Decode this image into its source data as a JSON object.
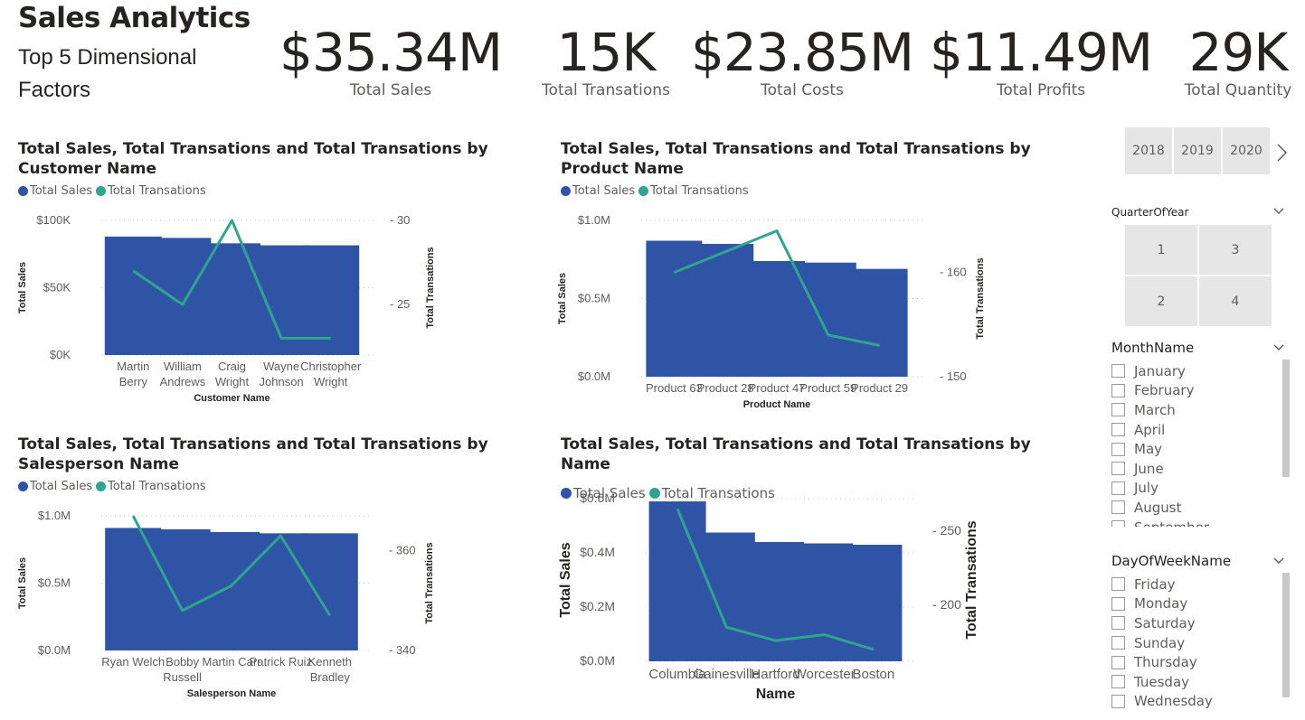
{
  "header": {
    "title": "Sales Analytics",
    "subtitle": "Top 5 Dimensional Factors"
  },
  "kpis": [
    {
      "value": "$35.34M",
      "label": "Total Sales"
    },
    {
      "value": "15K",
      "label": "Total Transations"
    },
    {
      "value": "$23.85M",
      "label": "Total Costs"
    },
    {
      "value": "$11.49M",
      "label": "Total Profits"
    },
    {
      "value": "29K",
      "label": "Total Quantity"
    }
  ],
  "colors": {
    "bar": "#2f54a6",
    "line": "#2fa58e"
  },
  "legend": {
    "sales": "Total Sales",
    "transactions": "Total Transations"
  },
  "chart_data": [
    {
      "type": "bar",
      "title": "Total Sales, Total Transations and Total Transations by Customer Name",
      "categories": [
        "Martin\nBerry",
        "William\nAndrews",
        "Craig\nWright",
        "Wayne\nJohnson",
        "Christopher\nWright"
      ],
      "xlabel": "Customer Name",
      "ylabel": "Total Sales",
      "y2label": "Total Transations",
      "ylim": [
        0,
        100000
      ],
      "y2lim": [
        22,
        30
      ],
      "yticks": [
        "$0K",
        "$50K",
        "$100K"
      ],
      "y2ticks": [
        "25",
        "30"
      ],
      "y2tickvals": [
        25,
        30
      ],
      "series": [
        {
          "name": "Total Sales",
          "values": [
            88000,
            87000,
            83000,
            81500,
            81500
          ]
        },
        {
          "name": "Total Transations",
          "values": [
            27,
            25,
            30,
            23,
            23
          ]
        }
      ]
    },
    {
      "type": "bar",
      "title": "Total Sales, Total Transations and Total Transations by Product Name",
      "categories": [
        "Product 63",
        "Product 28",
        "Product 47",
        "Product 59",
        "Product 29"
      ],
      "xlabel": "Product Name",
      "ylabel": "Total Sales",
      "y2label": "Total Transations",
      "ylim": [
        0,
        1.0
      ],
      "y2lim": [
        150,
        165
      ],
      "yticks": [
        "$0.0M",
        "$0.5M",
        "$1.0M"
      ],
      "y2ticks": [
        "150",
        "160"
      ],
      "y2tickvals": [
        150,
        160
      ],
      "series": [
        {
          "name": "Total Sales",
          "values": [
            0.87,
            0.85,
            0.74,
            0.73,
            0.69
          ]
        },
        {
          "name": "Total Transations",
          "values": [
            160,
            162,
            164,
            154,
            153
          ]
        }
      ]
    },
    {
      "type": "bar",
      "title": "Total Sales, Total Transations and Total Transations by Salesperson Name",
      "categories": [
        "Ryan Welch",
        "Bobby\nRussell",
        "Martin Carr",
        "Patrick Ruiz",
        "Kenneth\nBradley"
      ],
      "xlabel": "Salesperson Name",
      "ylabel": "Total Sales",
      "y2label": "Total Transations",
      "ylim": [
        0,
        1.0
      ],
      "y2lim": [
        340,
        367
      ],
      "yticks": [
        "$0.0M",
        "$0.5M",
        "$1.0M"
      ],
      "y2ticks": [
        "340",
        "360"
      ],
      "y2tickvals": [
        340,
        360
      ],
      "series": [
        {
          "name": "Total Sales",
          "values": [
            0.91,
            0.9,
            0.88,
            0.87,
            0.87
          ]
        },
        {
          "name": "Total Transations",
          "values": [
            367,
            348,
            353,
            363,
            347
          ]
        }
      ]
    },
    {
      "type": "bar",
      "title": "Total Sales, Total Transations and Total Transations by Name",
      "categories": [
        "Columbia",
        "Gainesville",
        "Hartford",
        "Worcester",
        "Boston"
      ],
      "xlabel": "Name",
      "ylabel": "Total Sales",
      "y2label": "Total Transations",
      "ylim": [
        0,
        0.6
      ],
      "y2lim": [
        162,
        272
      ],
      "yticks": [
        "$0.0M",
        "$0.2M",
        "$0.4M",
        "$0.6M"
      ],
      "y2ticks": [
        "200",
        "250"
      ],
      "y2tickvals": [
        200,
        250
      ],
      "series": [
        {
          "name": "Total Sales",
          "values": [
            0.59,
            0.475,
            0.44,
            0.435,
            0.43
          ]
        },
        {
          "name": "Total Transations",
          "values": [
            265,
            185,
            176,
            180,
            170
          ]
        }
      ]
    }
  ],
  "slicers": {
    "years": [
      "2018",
      "2019",
      "2020"
    ],
    "quarter": {
      "title": "QuarterOfYear",
      "options": [
        "1",
        "3",
        "2",
        "4"
      ]
    },
    "month": {
      "title": "MonthName",
      "options": [
        "January",
        "February",
        "March",
        "April",
        "May",
        "June",
        "July",
        "August",
        "September"
      ]
    },
    "dow": {
      "title": "DayOfWeekName",
      "options": [
        "Friday",
        "Monday",
        "Saturday",
        "Sunday",
        "Thursday",
        "Tuesday",
        "Wednesday"
      ]
    }
  }
}
